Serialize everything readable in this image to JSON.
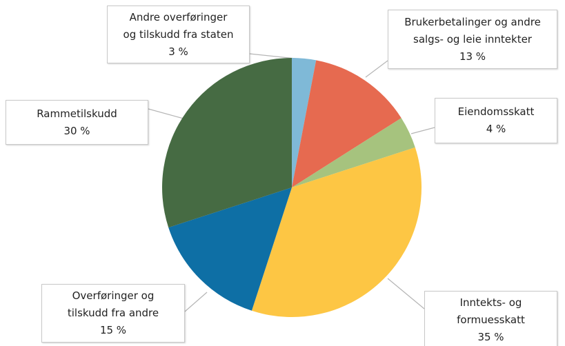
{
  "chart_data": {
    "type": "pie",
    "categories": [
      "Andre overføringer\nog tilskudd fra staten",
      "Brukerbetalinger og andre\nsalgs- og leie inntekter",
      "Eiendomsskatt",
      "Inntekts- og\nformuesskatt",
      "Overføringer og\ntilskudd fra andre",
      "Rammetilskudd"
    ],
    "values": [
      3,
      13,
      4,
      35,
      15,
      30
    ],
    "value_labels": [
      "3 %",
      "13 %",
      "4 %",
      "35 %",
      "15 %",
      "30 %"
    ],
    "colors": [
      "#7fb9d7",
      "#e66a50",
      "#a6c37e",
      "#fdc644",
      "#0e6fa5",
      "#466b43"
    ]
  }
}
